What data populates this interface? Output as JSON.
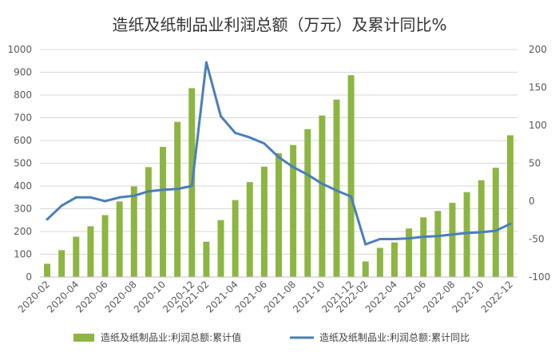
{
  "chart_data": {
    "type": "bar+line",
    "title": "造纸及纸制品业利润总额（万元）及累计同比%",
    "categories": [
      "2020-02",
      "2020-03",
      "2020-04",
      "2020-05",
      "2020-06",
      "2020-07",
      "2020-08",
      "2020-09",
      "2020-10",
      "2020-11",
      "2020-12",
      "2021-02",
      "2021-03",
      "2021-04",
      "2021-05",
      "2021-06",
      "2021-07",
      "2021-08",
      "2021-09",
      "2021-10",
      "2021-11",
      "2021-12",
      "2022-02",
      "2022-03",
      "2022-04",
      "2022-05",
      "2022-06",
      "2022-07",
      "2022-08",
      "2022-09",
      "2022-10",
      "2022-11",
      "2022-12"
    ],
    "x_tick_labels": [
      "2020-02",
      "2020-04",
      "2020-06",
      "2020-08",
      "2020-10",
      "2020-12",
      "2021-02",
      "2021-04",
      "2021-06",
      "2021-08",
      "2021-10",
      "2021-12",
      "2022-02",
      "2022-04",
      "2022-06",
      "2022-08",
      "2022-10",
      "2022-12"
    ],
    "left_axis": {
      "ylim": [
        0,
        1000
      ],
      "ticks": [
        "0",
        "100",
        "200",
        "300",
        "400",
        "500",
        "600",
        "700",
        "800",
        "900",
        "1000"
      ]
    },
    "right_axis": {
      "ylim": [
        -100,
        200
      ],
      "ticks": [
        "-100",
        "-50",
        "0",
        "50",
        "100",
        "150",
        "200"
      ]
    },
    "series": [
      {
        "name": "造纸及纸制品业:利润总额:累计值",
        "type": "bar",
        "axis": "left",
        "color": "#8DB542",
        "values": [
          58,
          118,
          177,
          223,
          272,
          332,
          398,
          483,
          572,
          682,
          830,
          155,
          250,
          338,
          417,
          485,
          544,
          580,
          650,
          710,
          780,
          887,
          68,
          128,
          152,
          213,
          262,
          290,
          326,
          373,
          425,
          480,
          623
        ]
      },
      {
        "name": "造纸及纸制品业:利润总额:累计同比",
        "type": "line",
        "axis": "right",
        "color": "#4A7EBB",
        "values": [
          -24,
          -6,
          5,
          5,
          0,
          5,
          7,
          13,
          15,
          16,
          20,
          183,
          112,
          90,
          84,
          76,
          58,
          45,
          35,
          23,
          14,
          6,
          -57,
          -50,
          -50,
          -49,
          -47,
          -46,
          -44,
          -42,
          -41,
          -39,
          -30
        ]
      }
    ]
  }
}
